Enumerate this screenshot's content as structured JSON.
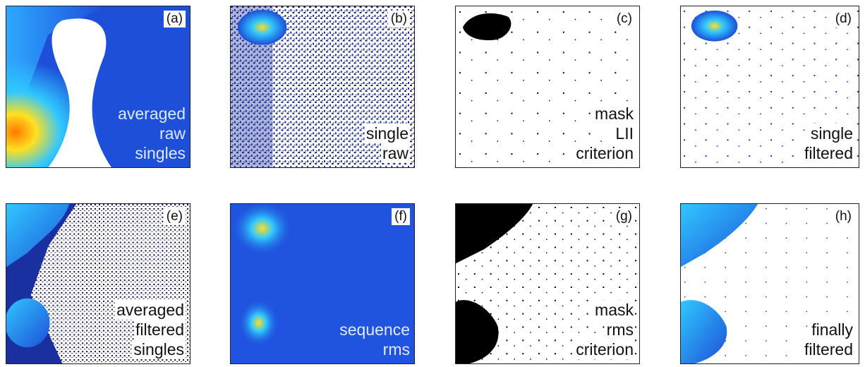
{
  "panels": [
    {
      "tag": "(a)",
      "caption": [
        "averaged",
        "raw",
        "singles"
      ],
      "caption_style": "light"
    },
    {
      "tag": "(b)",
      "caption": [
        "single",
        "raw"
      ],
      "caption_style": "dark"
    },
    {
      "tag": "(c)",
      "caption": [
        "mask",
        "LII",
        "criterion"
      ],
      "caption_style": "dark"
    },
    {
      "tag": "(d)",
      "caption": [
        "single",
        "filtered"
      ],
      "caption_style": "dark"
    },
    {
      "tag": "(e)",
      "caption": [
        "averaged",
        "filtered",
        "singles"
      ],
      "caption_style": "dark"
    },
    {
      "tag": "(f)",
      "caption": [
        "sequence",
        "rms"
      ],
      "caption_style": "light"
    },
    {
      "tag": "(g)",
      "caption": [
        "mask",
        "rms",
        "criterion"
      ],
      "caption_style": "dark"
    },
    {
      "tag": "(h)",
      "caption": [
        "finally",
        "filtered"
      ],
      "caption_style": "dark"
    }
  ],
  "colors": {
    "colormap_low": "#0a1a8c",
    "colormap_mid": "#2a6cf0",
    "colormap_high": "#ffd200",
    "mask": "#000000",
    "background": "#ffffff"
  }
}
